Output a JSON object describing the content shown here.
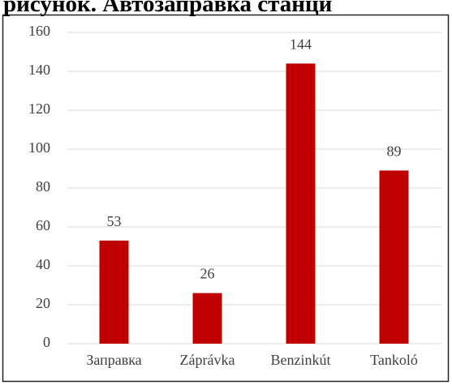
{
  "chart_data": {
    "type": "bar",
    "title": "рисунок. Автозаправка станци",
    "categories": [
      "Заправка",
      "Záprávka",
      "Benzinkút",
      "Tankoló"
    ],
    "values": [
      53,
      26,
      144,
      89
    ],
    "color": "#c00000",
    "ylim": [
      0,
      160
    ],
    "yticks": [
      0,
      20,
      40,
      60,
      80,
      100,
      120,
      140,
      160
    ],
    "grid": true
  }
}
